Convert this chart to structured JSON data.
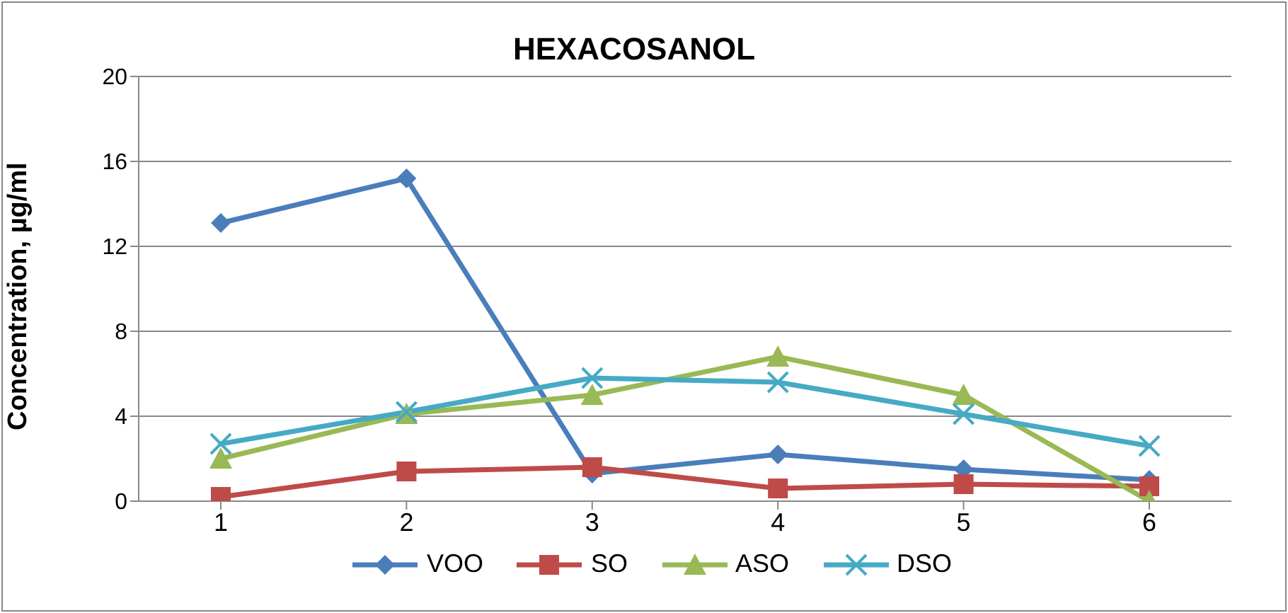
{
  "chart_data": {
    "type": "line",
    "title": "HEXACOSANOL",
    "ylabel": "Concentration, µg/ml",
    "categories": [
      "1",
      "2",
      "3",
      "4",
      "5",
      "6"
    ],
    "series": [
      {
        "name": "VOO",
        "color": "#4a7ebb",
        "marker": "diamond",
        "values": [
          13.1,
          15.2,
          1.3,
          2.2,
          1.5,
          1.0
        ]
      },
      {
        "name": "SO",
        "color": "#be4b48",
        "marker": "square",
        "values": [
          0.2,
          1.4,
          1.6,
          0.6,
          0.8,
          0.7
        ]
      },
      {
        "name": "ASO",
        "color": "#98b954",
        "marker": "triangle",
        "values": [
          2.0,
          4.1,
          5.0,
          6.8,
          5.0,
          0
        ]
      },
      {
        "name": "DSO",
        "color": "#46aac5",
        "marker": "cross",
        "values": [
          2.7,
          4.2,
          5.8,
          5.6,
          4.1,
          2.6
        ]
      }
    ],
    "ylim": [
      0,
      20
    ],
    "yticks": [
      0,
      4,
      8,
      12,
      16,
      20
    ],
    "grid": "y",
    "legend": "bottom",
    "line_style": "solid"
  }
}
